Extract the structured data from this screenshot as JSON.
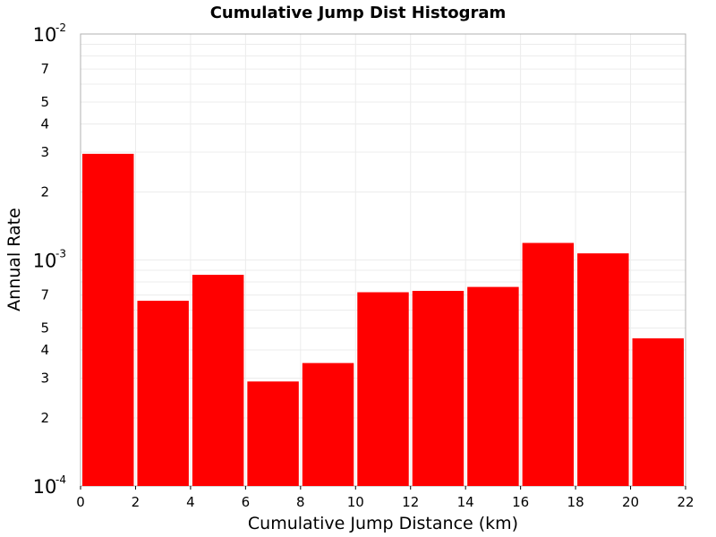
{
  "chart_data": {
    "type": "bar",
    "title": "Cumulative Jump Dist Histogram",
    "xlabel": "Cumulative Jump Distance (km)",
    "ylabel": "Annual Rate",
    "xlim": [
      0,
      22
    ],
    "ylim": [
      0.0001,
      0.01
    ],
    "yscale": "log",
    "grid": true,
    "bar_color": "#ff0000",
    "x_ticks": [
      "0",
      "2",
      "4",
      "6",
      "8",
      "10",
      "12",
      "14",
      "16",
      "18",
      "20",
      "22"
    ],
    "y_major_ticks": [
      {
        "value": 0.0001,
        "base": "10",
        "exp": "-4"
      },
      {
        "value": 0.001,
        "base": "10",
        "exp": "-3"
      },
      {
        "value": 0.01,
        "base": "10",
        "exp": "-2"
      }
    ],
    "y_minor_ticks": [
      {
        "value": 0.0002,
        "label": "2"
      },
      {
        "value": 0.0003,
        "label": "3"
      },
      {
        "value": 0.0004,
        "label": "4"
      },
      {
        "value": 0.0005,
        "label": "5"
      },
      {
        "value": 0.0007,
        "label": "7"
      },
      {
        "value": 0.002,
        "label": "2"
      },
      {
        "value": 0.003,
        "label": "3"
      },
      {
        "value": 0.004,
        "label": "4"
      },
      {
        "value": 0.005,
        "label": "5"
      },
      {
        "value": 0.007,
        "label": "7"
      }
    ],
    "bins": [
      {
        "x0": 0,
        "x1": 2,
        "value": 0.00295
      },
      {
        "x0": 2,
        "x1": 4,
        "value": 0.00066
      },
      {
        "x0": 4,
        "x1": 6,
        "value": 0.00086
      },
      {
        "x0": 6,
        "x1": 8,
        "value": 0.00029
      },
      {
        "x0": 8,
        "x1": 10,
        "value": 0.00035
      },
      {
        "x0": 10,
        "x1": 12,
        "value": 0.00072
      },
      {
        "x0": 12,
        "x1": 14,
        "value": 0.00073
      },
      {
        "x0": 14,
        "x1": 16,
        "value": 0.00076
      },
      {
        "x0": 16,
        "x1": 18,
        "value": 0.00119
      },
      {
        "x0": 18,
        "x1": 20,
        "value": 0.00107
      },
      {
        "x0": 20,
        "x1": 22,
        "value": 0.00045
      }
    ]
  }
}
